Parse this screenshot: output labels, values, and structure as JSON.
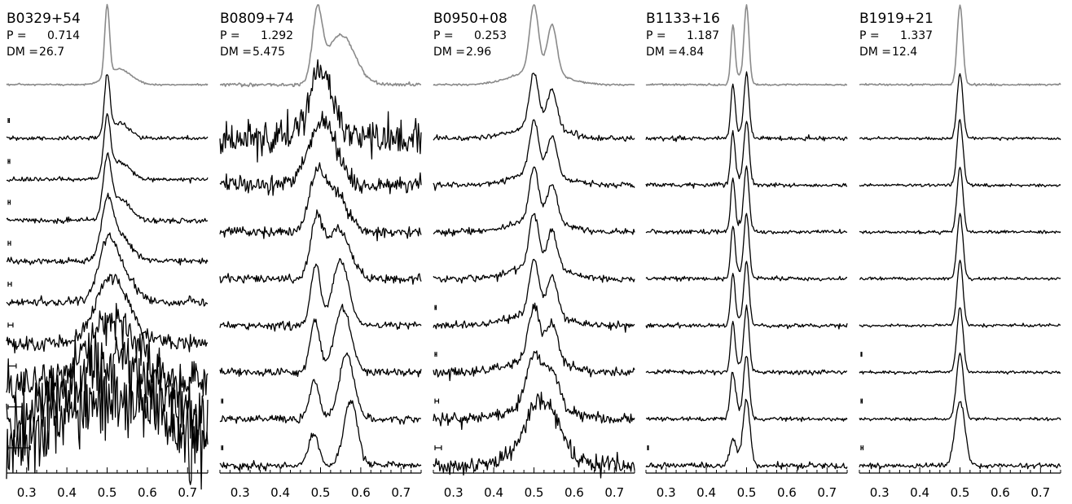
{
  "chart_data": [
    {
      "type": "line",
      "title": "B0329+54",
      "period_label": "P =",
      "period": "0.714",
      "dm_label": "DM =",
      "dm": "26.7",
      "xlim": [
        0.25,
        0.75
      ],
      "xticks": [
        "0.3",
        "0.4",
        "0.5",
        "0.6",
        "0.7"
      ],
      "template": {
        "components": [
          [
            0.5,
            0.006,
            1.0
          ],
          [
            0.53,
            0.03,
            0.22
          ]
        ],
        "noise": 0.01
      },
      "profiles": [
        {
          "components": [
            [
              0.5,
              0.006,
              1.0
            ],
            [
              0.53,
              0.025,
              0.25
            ]
          ],
          "noise": 0.03,
          "scatter": 0.003,
          "bar_width": 0.003
        },
        {
          "components": [
            [
              0.5,
              0.006,
              1.0
            ],
            [
              0.53,
              0.025,
              0.25
            ]
          ],
          "noise": 0.03,
          "scatter": 0.005,
          "bar_width": 0.004
        },
        {
          "components": [
            [
              0.5,
              0.006,
              1.0
            ],
            [
              0.53,
              0.025,
              0.25
            ]
          ],
          "noise": 0.04,
          "scatter": 0.008,
          "bar_width": 0.005
        },
        {
          "components": [
            [
              0.5,
              0.006,
              1.0
            ],
            [
              0.53,
              0.025,
              0.25
            ]
          ],
          "noise": 0.04,
          "scatter": 0.013,
          "bar_width": 0.006
        },
        {
          "components": [
            [
              0.5,
              0.006,
              1.0
            ],
            [
              0.53,
              0.025,
              0.25
            ]
          ],
          "noise": 0.06,
          "scatter": 0.022,
          "bar_width": 0.008
        },
        {
          "components": [
            [
              0.5,
              0.006,
              1.0
            ],
            [
              0.53,
              0.025,
              0.25
            ]
          ],
          "noise": 0.1,
          "scatter": 0.035,
          "bar_width": 0.012
        },
        {
          "components": [
            [
              0.5,
              0.006,
              1.0
            ],
            [
              0.53,
              0.025,
              0.25
            ]
          ],
          "noise": 0.28,
          "scatter": 0.06,
          "bar_width": 0.02
        },
        {
          "components": [
            [
              0.5,
              0.006,
              1.0
            ],
            [
              0.53,
              0.025,
              0.25
            ]
          ],
          "noise": 0.45,
          "scatter": 0.1,
          "bar_width": 0.035
        },
        {
          "components": [
            [
              0.5,
              0.006,
              1.0
            ],
            [
              0.53,
              0.025,
              0.25
            ]
          ],
          "noise": 0.55,
          "scatter": 0.15,
          "bar_width": 0.055
        }
      ]
    },
    {
      "type": "line",
      "title": "B0809+74",
      "period_label": "P =",
      "period": "1.292",
      "dm_label": "DM =",
      "dm": "5.475",
      "xlim": [
        0.25,
        0.75
      ],
      "xticks": [
        "0.3",
        "0.4",
        "0.5",
        "0.6",
        "0.7"
      ],
      "template": {
        "components": [
          [
            0.492,
            0.012,
            0.8
          ],
          [
            0.55,
            0.035,
            0.6
          ]
        ],
        "noise": 0.02
      },
      "profiles": [
        {
          "components": [
            [
              0.5,
              0.03,
              1.0
            ]
          ],
          "noise": 0.25,
          "scatter": 0.002,
          "bar_width": 0
        },
        {
          "components": [
            [
              0.505,
              0.033,
              1.0
            ]
          ],
          "noise": 0.12,
          "scatter": 0.002,
          "bar_width": 0
        },
        {
          "components": [
            [
              0.49,
              0.018,
              0.9
            ],
            [
              0.535,
              0.03,
              0.7
            ]
          ],
          "noise": 0.08,
          "scatter": 0.002,
          "bar_width": 0
        },
        {
          "components": [
            [
              0.49,
              0.015,
              0.9
            ],
            [
              0.545,
              0.028,
              0.75
            ]
          ],
          "noise": 0.06,
          "scatter": 0.002,
          "bar_width": 0
        },
        {
          "components": [
            [
              0.488,
              0.012,
              0.8
            ],
            [
              0.55,
              0.02,
              0.85
            ]
          ],
          "noise": 0.05,
          "scatter": 0.002,
          "bar_width": 0
        },
        {
          "components": [
            [
              0.486,
              0.012,
              0.75
            ],
            [
              0.555,
              0.02,
              0.95
            ]
          ],
          "noise": 0.05,
          "scatter": 0.002,
          "bar_width": 0
        },
        {
          "components": [
            [
              0.485,
              0.012,
              0.6
            ],
            [
              0.565,
              0.018,
              1.0
            ]
          ],
          "noise": 0.05,
          "scatter": 0.002,
          "bar_width": 0.003
        },
        {
          "components": [
            [
              0.483,
              0.012,
              0.5
            ],
            [
              0.575,
              0.017,
              1.0
            ]
          ],
          "noise": 0.05,
          "scatter": 0.002,
          "bar_width": 0.003
        }
      ]
    },
    {
      "type": "line",
      "title": "B0950+08",
      "period_label": "P =",
      "period": "0.253",
      "dm_label": "DM =",
      "dm": "2.96",
      "xlim": [
        0.25,
        0.75
      ],
      "xticks": [
        "0.3",
        "0.4",
        "0.5",
        "0.6",
        "0.7"
      ],
      "template": {
        "components": [
          [
            0.5,
            0.011,
            1.0
          ],
          [
            0.545,
            0.012,
            0.72
          ],
          [
            0.51,
            0.06,
            0.22
          ]
        ],
        "noise": 0.01
      },
      "profiles": [
        {
          "components": [
            [
              0.5,
              0.011,
              1.0
            ],
            [
              0.545,
              0.012,
              0.72
            ],
            [
              0.51,
              0.06,
              0.25
            ]
          ],
          "noise": 0.04,
          "scatter": 0.002,
          "bar_width": 0
        },
        {
          "components": [
            [
              0.5,
              0.011,
              1.0
            ],
            [
              0.545,
              0.012,
              0.72
            ],
            [
              0.51,
              0.06,
              0.25
            ]
          ],
          "noise": 0.04,
          "scatter": 0.002,
          "bar_width": 0
        },
        {
          "components": [
            [
              0.5,
              0.011,
              1.0
            ],
            [
              0.545,
              0.012,
              0.72
            ],
            [
              0.51,
              0.06,
              0.25
            ]
          ],
          "noise": 0.04,
          "scatter": 0.002,
          "bar_width": 0
        },
        {
          "components": [
            [
              0.5,
              0.011,
              1.0
            ],
            [
              0.545,
              0.012,
              0.72
            ],
            [
              0.51,
              0.06,
              0.25
            ]
          ],
          "noise": 0.05,
          "scatter": 0.003,
          "bar_width": 0
        },
        {
          "components": [
            [
              0.5,
              0.011,
              1.0
            ],
            [
              0.545,
              0.012,
              0.72
            ],
            [
              0.51,
              0.06,
              0.25
            ]
          ],
          "noise": 0.05,
          "scatter": 0.004,
          "bar_width": 0.003
        },
        {
          "components": [
            [
              0.5,
              0.012,
              1.0
            ],
            [
              0.545,
              0.013,
              0.72
            ],
            [
              0.51,
              0.06,
              0.25
            ]
          ],
          "noise": 0.06,
          "scatter": 0.007,
          "bar_width": 0.004
        },
        {
          "components": [
            [
              0.5,
              0.013,
              1.0
            ],
            [
              0.545,
              0.014,
              0.72
            ],
            [
              0.51,
              0.06,
              0.25
            ]
          ],
          "noise": 0.08,
          "scatter": 0.012,
          "bar_width": 0.009
        },
        {
          "components": [
            [
              0.5,
              0.016,
              0.9
            ],
            [
              0.545,
              0.018,
              0.7
            ],
            [
              0.51,
              0.06,
              0.3
            ]
          ],
          "noise": 0.12,
          "scatter": 0.02,
          "bar_width": 0.016
        }
      ]
    },
    {
      "type": "line",
      "title": "B1133+16",
      "period_label": "P =",
      "period": "1.187",
      "dm_label": "DM =",
      "dm": "4.84",
      "xlim": [
        0.25,
        0.75
      ],
      "xticks": [
        "0.3",
        "0.4",
        "0.5",
        "0.6",
        "0.7"
      ],
      "template": {
        "components": [
          [
            0.466,
            0.005,
            0.75
          ],
          [
            0.5,
            0.006,
            1.0
          ],
          [
            0.485,
            0.015,
            0.12
          ]
        ],
        "noise": 0.01
      },
      "profiles": [
        {
          "components": [
            [
              0.466,
              0.005,
              0.85
            ],
            [
              0.5,
              0.006,
              1.0
            ],
            [
              0.485,
              0.015,
              0.1
            ]
          ],
          "noise": 0.03,
          "scatter": 0.002,
          "bar_width": 0
        },
        {
          "components": [
            [
              0.466,
              0.005,
              0.85
            ],
            [
              0.5,
              0.006,
              1.0
            ],
            [
              0.485,
              0.015,
              0.1
            ]
          ],
          "noise": 0.03,
          "scatter": 0.002,
          "bar_width": 0
        },
        {
          "components": [
            [
              0.466,
              0.005,
              0.85
            ],
            [
              0.5,
              0.006,
              1.0
            ],
            [
              0.485,
              0.015,
              0.1
            ]
          ],
          "noise": 0.03,
          "scatter": 0.002,
          "bar_width": 0
        },
        {
          "components": [
            [
              0.466,
              0.005,
              0.85
            ],
            [
              0.5,
              0.006,
              1.0
            ],
            [
              0.485,
              0.015,
              0.1
            ]
          ],
          "noise": 0.03,
          "scatter": 0.002,
          "bar_width": 0
        },
        {
          "components": [
            [
              0.466,
              0.005,
              0.85
            ],
            [
              0.5,
              0.006,
              1.0
            ],
            [
              0.485,
              0.015,
              0.1
            ]
          ],
          "noise": 0.03,
          "scatter": 0.002,
          "bar_width": 0
        },
        {
          "components": [
            [
              0.466,
              0.005,
              0.8
            ],
            [
              0.5,
              0.006,
              1.0
            ],
            [
              0.485,
              0.015,
              0.1
            ]
          ],
          "noise": 0.03,
          "scatter": 0.002,
          "bar_width": 0
        },
        {
          "components": [
            [
              0.466,
              0.006,
              0.7
            ],
            [
              0.5,
              0.006,
              1.0
            ],
            [
              0.485,
              0.015,
              0.1
            ]
          ],
          "noise": 0.03,
          "scatter": 0.003,
          "bar_width": 0
        },
        {
          "components": [
            [
              0.466,
              0.006,
              0.4
            ],
            [
              0.5,
              0.007,
              1.0
            ],
            [
              0.485,
              0.015,
              0.1
            ]
          ],
          "noise": 0.04,
          "scatter": 0.005,
          "bar_width": 0.002
        }
      ]
    },
    {
      "type": "line",
      "title": "B1919+21",
      "period_label": "P =",
      "period": "1.337",
      "dm_label": "DM =",
      "dm": "12.4",
      "xlim": [
        0.25,
        0.75
      ],
      "xticks": [
        "0.3",
        "0.4",
        "0.5",
        "0.6",
        "0.7"
      ],
      "template": {
        "components": [
          [
            0.5,
            0.007,
            1.0
          ]
        ],
        "noise": 0.01
      },
      "profiles": [
        {
          "components": [
            [
              0.5,
              0.007,
              1.0
            ]
          ],
          "noise": 0.02,
          "scatter": 0.002,
          "bar_width": 0
        },
        {
          "components": [
            [
              0.5,
              0.007,
              1.0
            ]
          ],
          "noise": 0.02,
          "scatter": 0.002,
          "bar_width": 0
        },
        {
          "components": [
            [
              0.5,
              0.007,
              1.0
            ]
          ],
          "noise": 0.02,
          "scatter": 0.002,
          "bar_width": 0
        },
        {
          "components": [
            [
              0.5,
              0.007,
              1.0
            ]
          ],
          "noise": 0.02,
          "scatter": 0.002,
          "bar_width": 0
        },
        {
          "components": [
            [
              0.5,
              0.007,
              1.0
            ]
          ],
          "noise": 0.02,
          "scatter": 0.002,
          "bar_width": 0
        },
        {
          "components": [
            [
              0.5,
              0.007,
              1.0
            ]
          ],
          "noise": 0.02,
          "scatter": 0.003,
          "bar_width": 0.002
        },
        {
          "components": [
            [
              0.5,
              0.008,
              1.0
            ]
          ],
          "noise": 0.02,
          "scatter": 0.004,
          "bar_width": 0.003
        },
        {
          "components": [
            [
              0.5,
              0.01,
              1.0
            ]
          ],
          "noise": 0.03,
          "scatter": 0.007,
          "bar_width": 0.005
        }
      ]
    }
  ]
}
